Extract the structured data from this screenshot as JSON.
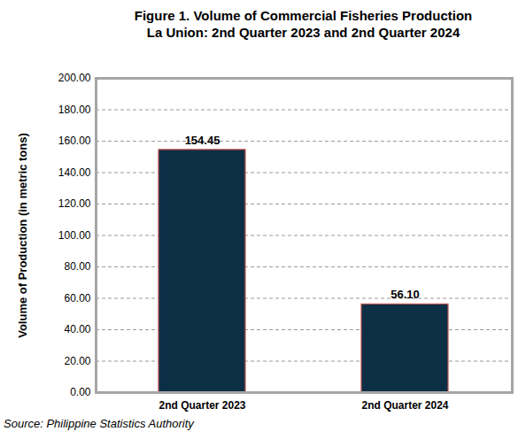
{
  "chart_data": {
    "type": "bar",
    "title": "Figure 1.  Volume of Commercial Fisheries Production",
    "subtitle": "La Union:  2nd Quarter 2023 and 2nd Quarter 2024",
    "y_label": "Volume of Production (in metric tons)",
    "source": "Source: Philippine Statistics Authority",
    "categories": [
      "2nd Quarter 2023",
      "2nd Quarter 2024"
    ],
    "values": [
      154.45,
      56.1
    ],
    "value_labels": [
      "154.45",
      "56.10"
    ],
    "color": "#0d2f45",
    "ylim": [
      0,
      200
    ],
    "yticks": [
      {
        "value": 0,
        "label": "0.00"
      },
      {
        "value": 20,
        "label": "20.00"
      },
      {
        "value": 40,
        "label": "40.00"
      },
      {
        "value": 60,
        "label": "60.00"
      },
      {
        "value": 80,
        "label": "80.00"
      },
      {
        "value": 100,
        "label": "100.00"
      },
      {
        "value": 120,
        "label": "120.00"
      },
      {
        "value": 140,
        "label": "140.00"
      },
      {
        "value": 160,
        "label": "160.00"
      },
      {
        "value": 180,
        "label": "180.00"
      },
      {
        "value": 200,
        "label": "200.00"
      }
    ],
    "grid": true,
    "data_labels": true
  }
}
